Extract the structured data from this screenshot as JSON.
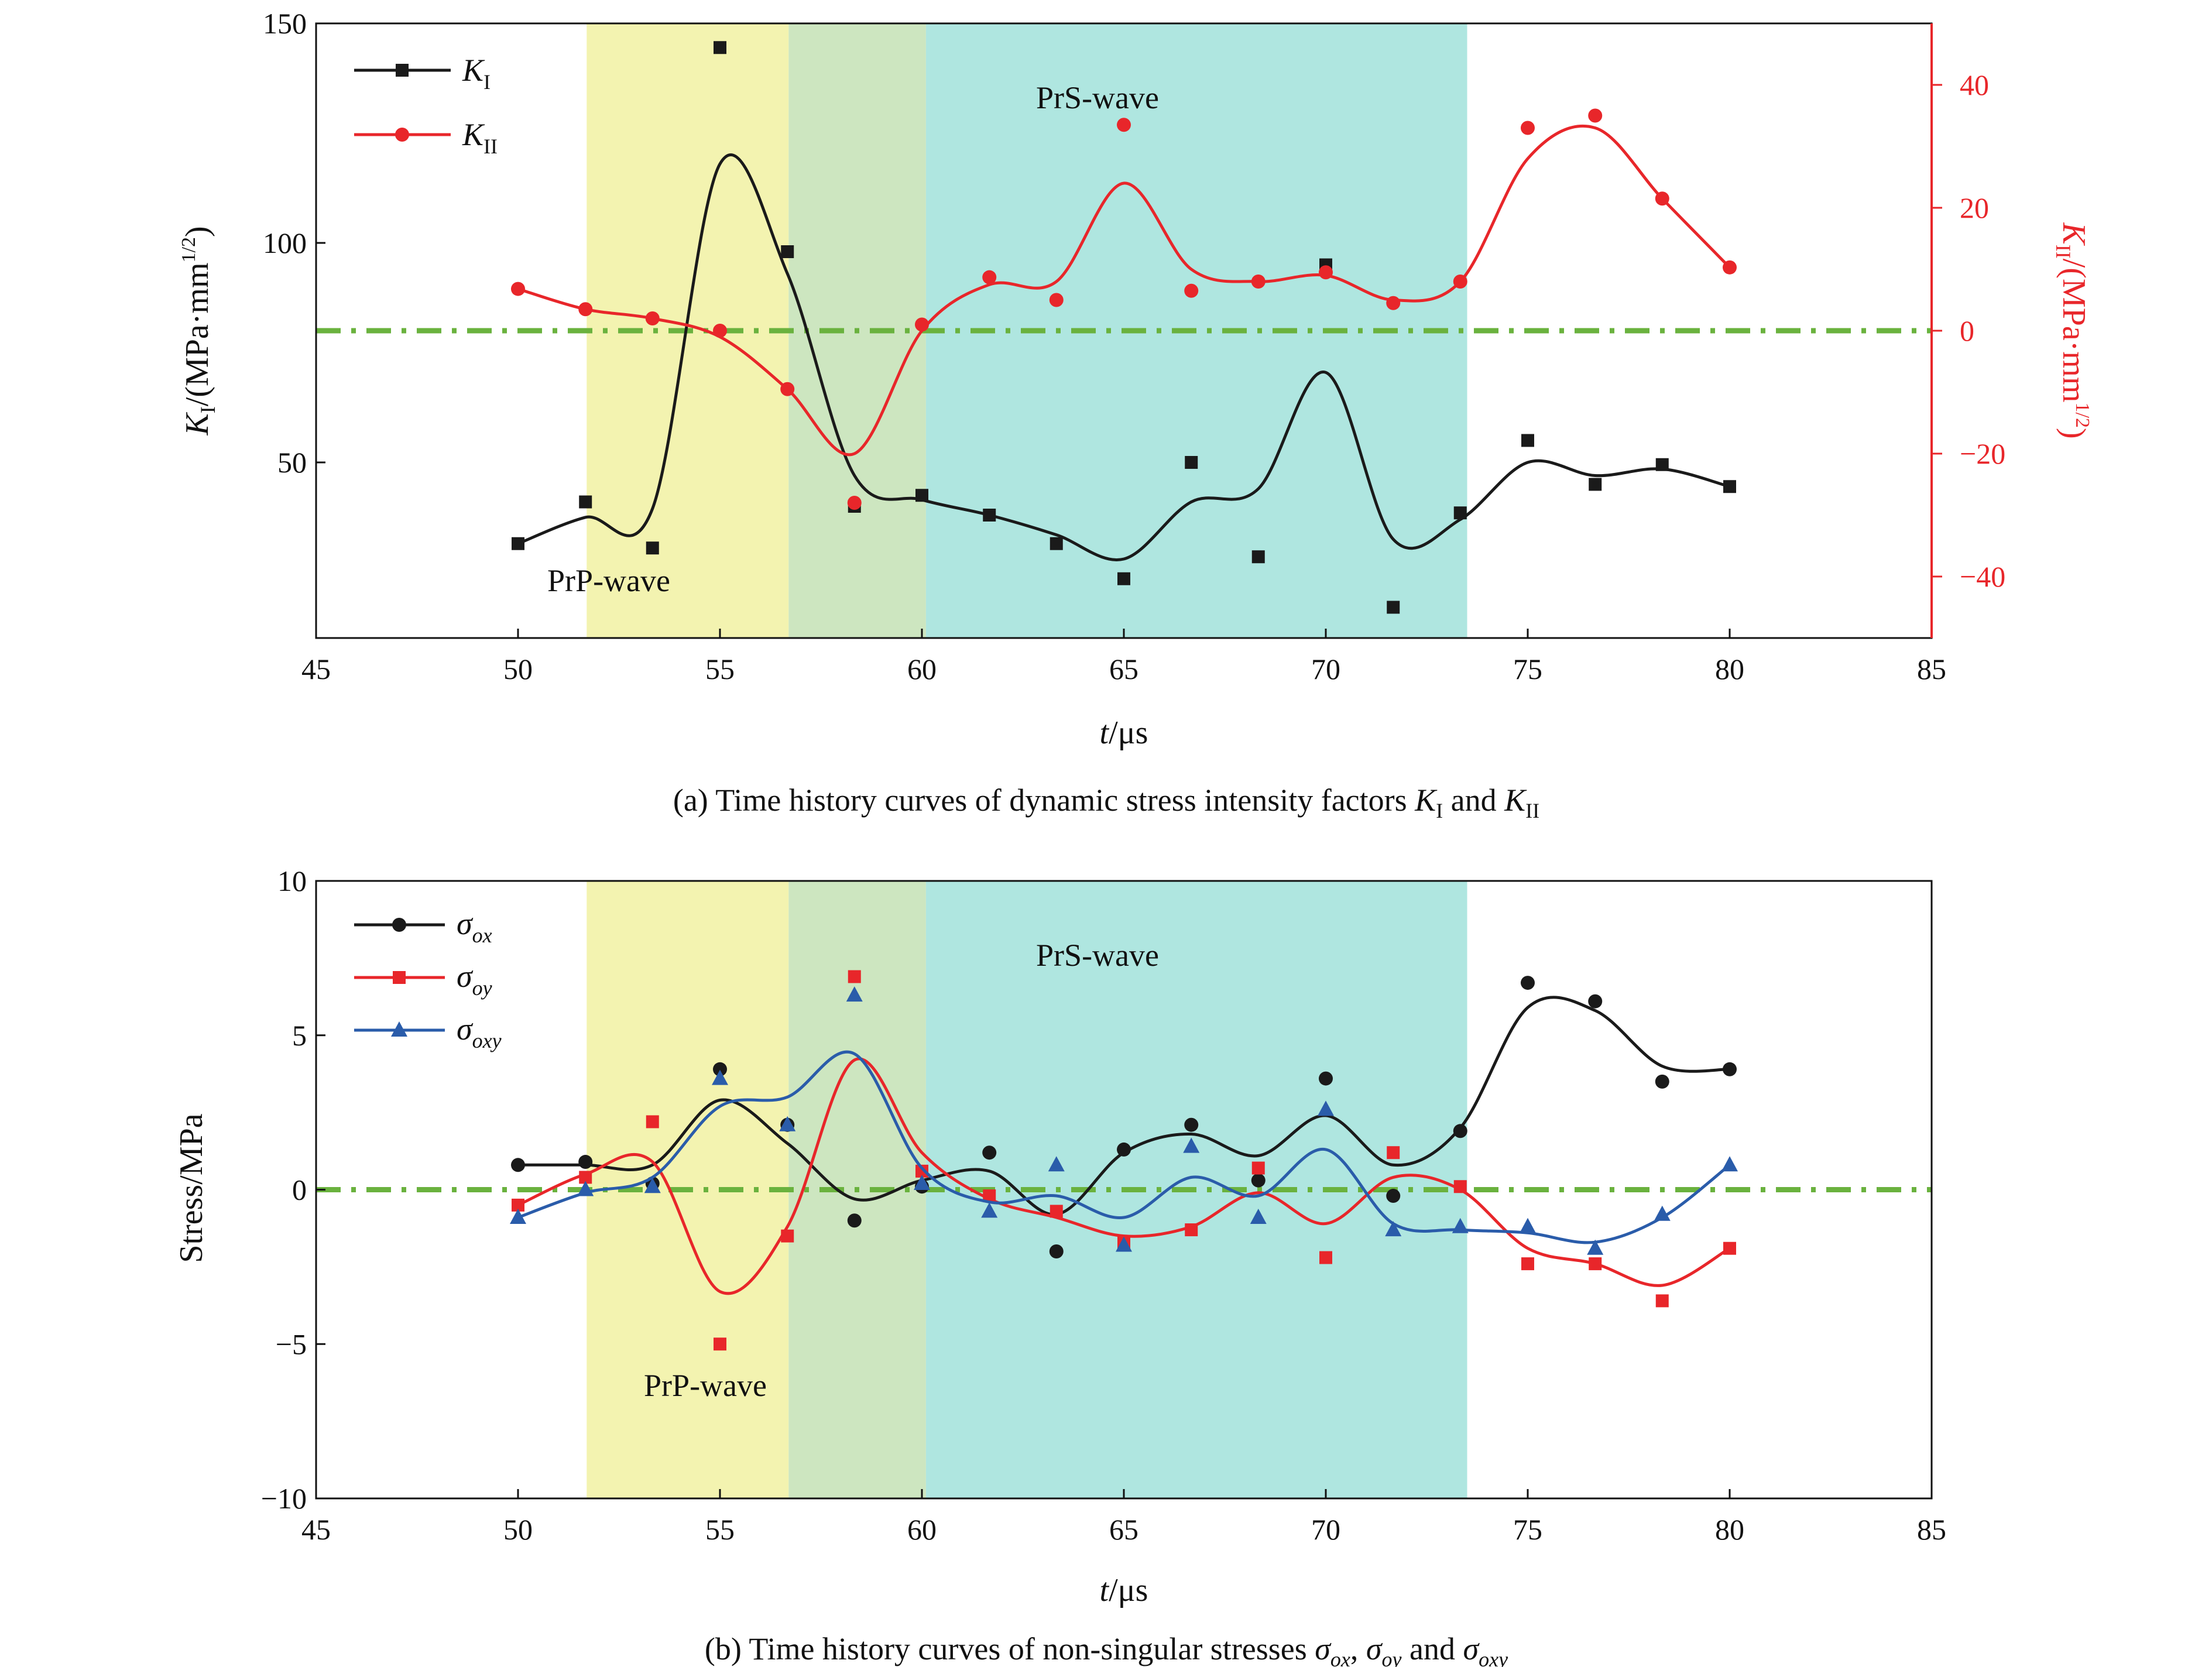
{
  "colors": {
    "black": "#1a1a1a",
    "red": "#e8262a",
    "blue": "#2a5caa",
    "zero_line": "#6ab23e",
    "prp_band": "#f3f3b0",
    "overlap_band": "#cde6c0",
    "prs_band": "#afe6e0"
  },
  "chart_data": [
    {
      "type": "line",
      "panel": "a",
      "caption_prefix": "(a) Time history curves of dynamic stress intensity factors ",
      "caption_k1": "K",
      "caption_k1_sub": "I",
      "caption_and": " and ",
      "caption_k2": "K",
      "caption_k2_sub": "II",
      "xlabel_italic": "t",
      "xlabel_rest": "/μs",
      "ylabel_left_k": "K",
      "ylabel_left_sub": "I",
      "ylabel_left_rest": "/(MPa·mm",
      "ylabel_left_exp": "1/2",
      "ylabel_left_close": ")",
      "ylabel_right_k": "K",
      "ylabel_right_sub": "II",
      "ylabel_right_rest": "/(MPa·mm",
      "ylabel_right_exp": "1/2",
      "ylabel_right_close": ")",
      "xlim": [
        45,
        85
      ],
      "xticks": [
        45,
        50,
        55,
        60,
        65,
        70,
        75,
        80,
        85
      ],
      "ylim_left": [
        10,
        150
      ],
      "yticks_left": [
        50,
        100,
        150
      ],
      "ylim_right": [
        -50,
        50
      ],
      "yticks_right": [
        -40,
        -20,
        0,
        20,
        40
      ],
      "bands": [
        {
          "label": "PrP-wave",
          "x0": 51.7,
          "x1": 56.7,
          "kind": "prp"
        },
        {
          "label": "",
          "x0": 56.7,
          "x1": 60.1,
          "kind": "overlap"
        },
        {
          "label": "PrS-wave",
          "x0": 60.1,
          "x1": 73.5,
          "kind": "prs"
        }
      ],
      "zero_line": {
        "axis": "right",
        "y": 0
      },
      "legend": "top-left",
      "series": [
        {
          "name": "K",
          "name_sub": "I",
          "axis": "left",
          "marker": "square",
          "color": "black",
          "x": [
            50,
            51.67,
            53.33,
            55,
            56.67,
            58.33,
            60,
            61.67,
            63.33,
            65,
            66.67,
            68.33,
            70,
            71.67,
            73.33,
            75,
            76.67,
            78.33,
            80
          ],
          "y": [
            31.5,
            41,
            30.5,
            144.5,
            98,
            40,
            42.5,
            38,
            31.5,
            23.5,
            50,
            28.5,
            95,
            17,
            38.5,
            55,
            45,
            49.5,
            44.5
          ],
          "curve_y": [
            31.5,
            37.5,
            39.5,
            118,
            93,
            47,
            41.5,
            38,
            33.5,
            28,
            41,
            44,
            70.5,
            32.5,
            37,
            50,
            47,
            48.5,
            44.5
          ]
        },
        {
          "name": "K",
          "name_sub": "II",
          "axis": "right",
          "marker": "circle",
          "color": "red",
          "x": [
            50,
            51.67,
            53.33,
            55,
            56.67,
            58.33,
            60,
            61.67,
            63.33,
            65,
            66.67,
            68.33,
            70,
            71.67,
            73.33,
            75,
            76.67,
            78.33,
            80
          ],
          "y": [
            6.8,
            3.5,
            2,
            0,
            -9.5,
            -28,
            1,
            8.7,
            5,
            33.5,
            6.5,
            8,
            9.5,
            4.5,
            8,
            33,
            35,
            21.5,
            10.3
          ],
          "curve_y": [
            6.8,
            3.5,
            2,
            -1,
            -9.5,
            -20,
            0,
            7.5,
            8,
            24,
            10,
            8,
            9,
            5,
            8,
            28,
            33,
            21.5,
            10.3
          ]
        }
      ]
    },
    {
      "type": "line",
      "panel": "b",
      "caption_prefix": "(b) Time history curves of non-singular stresses ",
      "caption_s1": "σ",
      "caption_s1_sub": "ox",
      "caption_sep": ", ",
      "caption_s2": "σ",
      "caption_s2_sub": "oy",
      "caption_and": " and ",
      "caption_s3": "σ",
      "caption_s3_sub": "oxy",
      "xlabel_italic": "t",
      "xlabel_rest": "/μs",
      "ylabel": "Stress/MPa",
      "xlim": [
        45,
        85
      ],
      "xticks": [
        45,
        50,
        55,
        60,
        65,
        70,
        75,
        80,
        85
      ],
      "ylim": [
        -10,
        10
      ],
      "yticks": [
        -10,
        -5,
        0,
        5,
        10
      ],
      "bands": [
        {
          "label": "PrP-wave",
          "x0": 51.7,
          "x1": 56.7,
          "kind": "prp"
        },
        {
          "label": "",
          "x0": 56.7,
          "x1": 60.1,
          "kind": "overlap"
        },
        {
          "label": "PrS-wave",
          "x0": 60.1,
          "x1": 73.5,
          "kind": "prs"
        }
      ],
      "zero_line": {
        "y": 0
      },
      "legend": "top-left",
      "series": [
        {
          "name": "σ",
          "name_sub": "ox",
          "marker": "circle",
          "color": "black",
          "x": [
            50,
            51.67,
            53.33,
            55,
            56.67,
            58.33,
            60,
            61.67,
            63.33,
            65,
            66.67,
            68.33,
            70,
            71.67,
            73.33,
            75,
            76.67,
            78.33,
            80
          ],
          "y": [
            0.8,
            0.9,
            0.2,
            3.9,
            2.1,
            -1,
            0.1,
            1.2,
            -2,
            1.3,
            2.1,
            0.3,
            3.6,
            -0.2,
            1.9,
            6.7,
            6.1,
            3.5,
            3.9
          ],
          "curve_y": [
            0.8,
            0.8,
            0.8,
            2.9,
            1.5,
            -0.3,
            0.3,
            0.6,
            -0.8,
            1.2,
            1.8,
            1.1,
            2.4,
            0.8,
            2.0,
            5.9,
            5.8,
            4.0,
            3.9
          ]
        },
        {
          "name": "σ",
          "name_sub": "oy",
          "marker": "square",
          "color": "red",
          "x": [
            50,
            51.67,
            53.33,
            55,
            56.67,
            58.33,
            60,
            61.67,
            63.33,
            65,
            66.67,
            68.33,
            70,
            71.67,
            73.33,
            75,
            76.67,
            78.33,
            80
          ],
          "y": [
            -0.5,
            0.4,
            2.2,
            -5,
            -1.5,
            6.9,
            0.6,
            -0.2,
            -0.7,
            -1.7,
            -1.3,
            0.7,
            -2.2,
            1.2,
            0.1,
            -2.4,
            -2.4,
            -3.6,
            -1.9
          ],
          "curve_y": [
            -0.5,
            0.5,
            0.9,
            -3.3,
            -1.2,
            4.2,
            1.2,
            -0.3,
            -0.9,
            -1.5,
            -1.2,
            -0.1,
            -1.1,
            0.4,
            0.0,
            -1.9,
            -2.4,
            -3.1,
            -1.9
          ]
        },
        {
          "name": "σ",
          "name_sub": "oxy",
          "marker": "triangle",
          "color": "blue",
          "x": [
            50,
            51.67,
            53.33,
            55,
            56.67,
            58.33,
            60,
            61.67,
            63.33,
            65,
            66.67,
            68.33,
            70,
            71.67,
            73.33,
            75,
            76.67,
            78.33,
            80
          ],
          "y": [
            -0.9,
            0,
            0.1,
            3.6,
            2.1,
            6.3,
            0.2,
            -0.7,
            0.8,
            -1.8,
            1.4,
            -0.9,
            2.6,
            -1.3,
            -1.2,
            -1.2,
            -1.9,
            -0.8,
            0.8
          ],
          "curve_y": [
            -0.9,
            -0.1,
            0.4,
            2.7,
            3.0,
            4.4,
            0.7,
            -0.4,
            -0.2,
            -0.9,
            0.4,
            -0.2,
            1.3,
            -1.1,
            -1.3,
            -1.4,
            -1.7,
            -0.9,
            0.8
          ]
        }
      ]
    }
  ]
}
